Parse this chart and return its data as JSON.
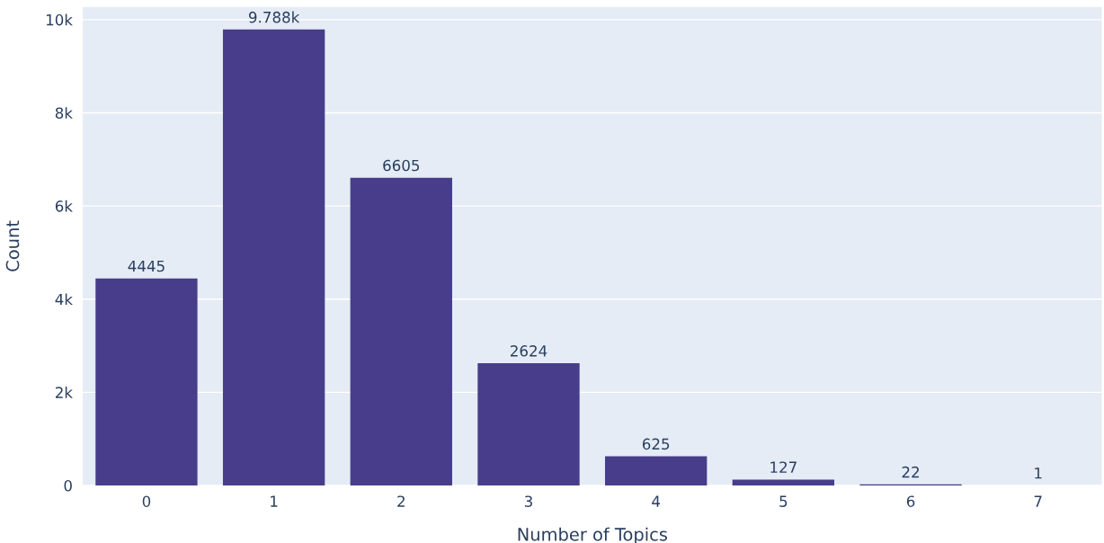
{
  "chart_data": {
    "type": "bar",
    "xlabel": "Number of Topics",
    "ylabel": "Count",
    "categories": [
      "0",
      "1",
      "2",
      "3",
      "4",
      "5",
      "6",
      "7"
    ],
    "values": [
      4445,
      9788,
      6605,
      2624,
      625,
      127,
      22,
      1
    ],
    "value_labels": [
      "4445",
      "9.788k",
      "6605",
      "2624",
      "625",
      "127",
      "22",
      "1"
    ],
    "color": "#483d8b",
    "ylim": [
      0,
      10270
    ],
    "yticks": [
      0,
      {
        "value": 2000,
        "label": "2k"
      },
      {
        "value": 4000,
        "label": "4k"
      },
      {
        "value": 6000,
        "label": "6k"
      },
      {
        "value": 8000,
        "label": "8k"
      },
      {
        "value": 10000,
        "label": "10k"
      }
    ],
    "grid": "y"
  }
}
